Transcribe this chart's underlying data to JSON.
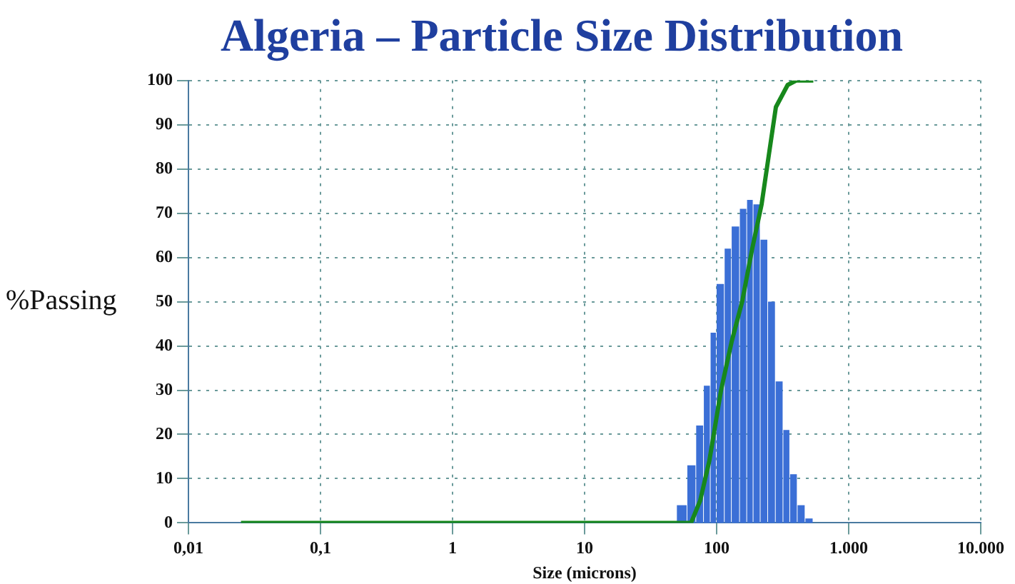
{
  "chart_data": {
    "type": "histogram",
    "title": "Algeria – Particle Size Distribution",
    "xlabel": "Size (microns)",
    "ylabel": "%Passing",
    "log": "x",
    "grid": true,
    "line_style": "solid",
    "marker": "none",
    "xlim": [
      0.01,
      10000
    ],
    "xticks": [
      {
        "value": 0.01,
        "label": "0,01"
      },
      {
        "value": 0.1,
        "label": "0,1"
      },
      1,
      10,
      100,
      {
        "value": 1000,
        "label": "1.000"
      },
      {
        "value": 10000,
        "label": "10.000"
      }
    ],
    "ylim": [
      0,
      100
    ],
    "yticks": [
      0,
      10,
      20,
      30,
      40,
      50,
      60,
      70,
      80,
      90,
      100
    ],
    "series": [
      {
        "color": "#3b6fd6",
        "bins": [
          50,
          60,
          70,
          80,
          90,
          100,
          115,
          130,
          150,
          170,
          190,
          215,
          245,
          280,
          320,
          360,
          410,
          470,
          540
        ],
        "values": [
          4,
          13,
          22,
          31,
          43,
          54,
          62,
          67,
          71,
          73,
          72,
          64,
          50,
          32,
          21,
          11,
          4,
          1
        ]
      },
      {
        "type": "line",
        "color": "#17881c",
        "x": [
          0.025,
          64,
          75,
          88,
          108,
          130,
          156,
          186,
          219,
          248,
          281,
          345,
          400,
          540
        ],
        "values": [
          0,
          0,
          5,
          14,
          30,
          41,
          50,
          62,
          72,
          83,
          94,
          99,
          100,
          100
        ]
      }
    ]
  }
}
